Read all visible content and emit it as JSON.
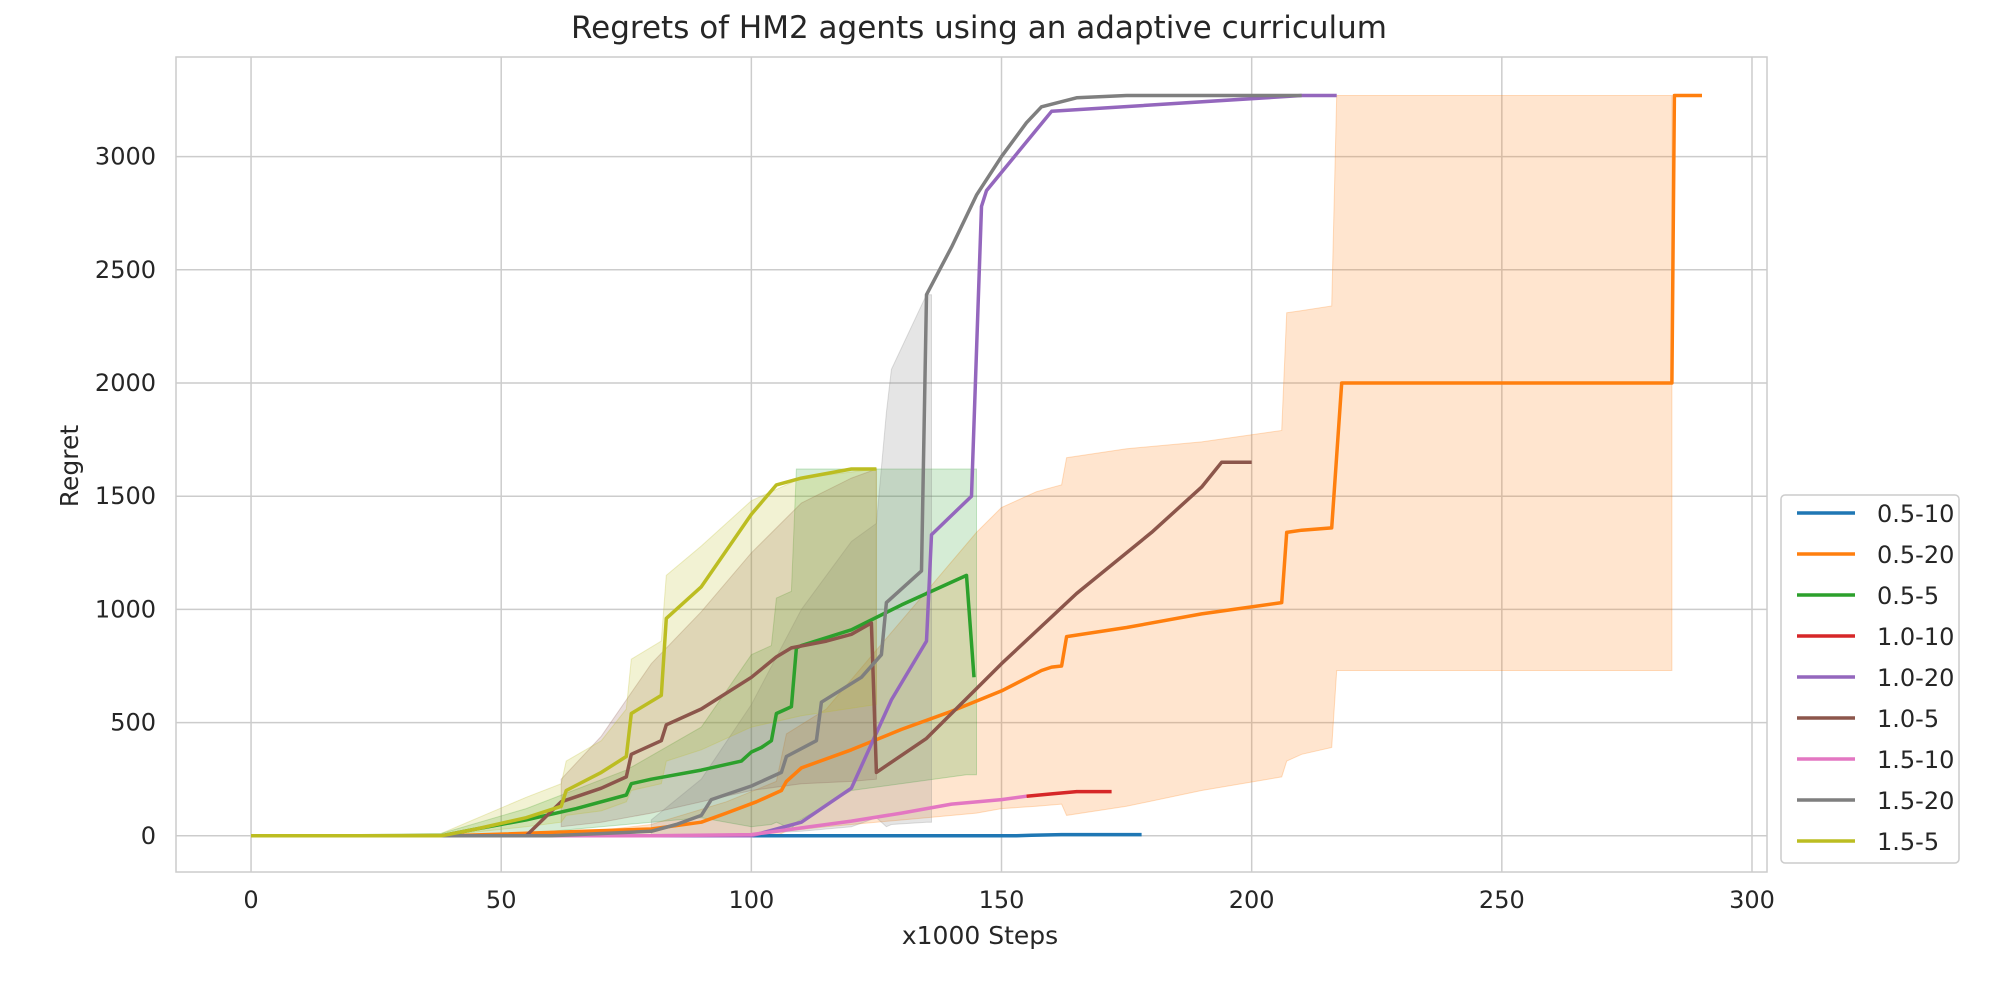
{
  "chart_data": {
    "type": "line",
    "title": "Regrets of HM2 agents using an adaptive curriculum",
    "xlabel": "x1000 Steps",
    "ylabel": "Regret",
    "xlim": [
      -15,
      303
    ],
    "ylim": [
      -160,
      3440
    ],
    "xticks": [
      0,
      50,
      100,
      150,
      200,
      250,
      300
    ],
    "yticks": [
      0,
      500,
      1000,
      1500,
      2000,
      2500,
      3000
    ],
    "grid": true,
    "legend_position": "right",
    "series": [
      {
        "name": "0.5-10",
        "color": "#1f77b4",
        "x": [
          0,
          100,
          153,
          156,
          162,
          178
        ],
        "y": [
          0,
          0,
          0,
          2,
          5,
          5
        ],
        "band_x": [],
        "band_lo": [],
        "band_hi": []
      },
      {
        "name": "0.5-20",
        "color": "#ff7f0e",
        "x": [
          0,
          40,
          80,
          90,
          95,
          101,
          106,
          107,
          110,
          120,
          130,
          140,
          150,
          158,
          160,
          162,
          163,
          175,
          190,
          206,
          207,
          210,
          216,
          218,
          230,
          284,
          284.5,
          290
        ],
        "y": [
          0,
          0,
          30,
          60,
          100,
          150,
          200,
          240,
          300,
          380,
          470,
          550,
          640,
          730,
          745,
          750,
          880,
          920,
          980,
          1030,
          1340,
          1350,
          1360,
          2000,
          2000,
          2000,
          3270,
          3270
        ],
        "band_x": [
          60,
          80,
          95,
          105,
          107,
          115,
          125,
          135,
          145,
          150,
          157,
          162,
          163,
          175,
          190,
          206,
          207,
          210,
          216,
          217,
          218,
          284
        ],
        "band_lo": [
          0,
          0,
          0,
          0,
          20,
          40,
          60,
          80,
          100,
          120,
          130,
          140,
          90,
          130,
          200,
          260,
          330,
          360,
          390,
          730,
          730,
          730
        ],
        "band_hi": [
          0,
          50,
          150,
          240,
          450,
          560,
          820,
          1080,
          1340,
          1450,
          1520,
          1550,
          1670,
          1710,
          1740,
          1790,
          2310,
          2320,
          2340,
          3270,
          3270,
          3270
        ]
      },
      {
        "name": "0.5-5",
        "color": "#2ca02c",
        "x": [
          0,
          38,
          45,
          55,
          65,
          75,
          76,
          80,
          90,
          98,
          100,
          102,
          104,
          105,
          107,
          108,
          109,
          110,
          120,
          130,
          143,
          144.5
        ],
        "y": [
          0,
          0,
          30,
          70,
          120,
          180,
          230,
          250,
          290,
          330,
          370,
          390,
          420,
          540,
          560,
          570,
          830,
          840,
          910,
          1020,
          1150,
          700
        ],
        "band_x": [
          0,
          38,
          55,
          75,
          90,
          100,
          104,
          105,
          108,
          109,
          120,
          143,
          145
        ],
        "band_lo": [
          0,
          0,
          10,
          50,
          80,
          40,
          50,
          60,
          30,
          60,
          200,
          270,
          270
        ],
        "band_hi": [
          0,
          10,
          120,
          290,
          480,
          800,
          840,
          1050,
          1080,
          1620,
          1620,
          1620,
          1620
        ]
      },
      {
        "name": "1.0-10",
        "color": "#d62728",
        "x": [
          155,
          160,
          165,
          172
        ],
        "y": [
          175,
          185,
          195,
          195
        ],
        "band_x": [],
        "band_lo": [],
        "band_hi": []
      },
      {
        "name": "1.0-20",
        "color": "#9467bd",
        "x": [
          60,
          100,
          110,
          120,
          128,
          135,
          136,
          144,
          146,
          147,
          160,
          210,
          217
        ],
        "y": [
          0,
          0,
          60,
          210,
          600,
          860,
          1330,
          1500,
          2780,
          2850,
          3200,
          3270,
          3270
        ],
        "band_x": [],
        "band_lo": [],
        "band_hi": []
      },
      {
        "name": "1.0-5",
        "color": "#8c564b",
        "x": [
          0,
          55,
          62,
          70,
          75,
          76,
          82,
          83,
          90,
          100,
          105,
          108,
          115,
          120,
          124,
          125,
          135,
          150,
          165,
          180,
          190,
          194,
          200
        ],
        "y": [
          0,
          0,
          150,
          210,
          260,
          360,
          420,
          490,
          560,
          700,
          790,
          830,
          860,
          890,
          940,
          280,
          430,
          760,
          1070,
          1340,
          1540,
          1650,
          1650
        ],
        "band_x": [
          62,
          70,
          80,
          90,
          100,
          110,
          120,
          125
        ],
        "band_lo": [
          40,
          60,
          100,
          150,
          200,
          230,
          240,
          250
        ],
        "band_hi": [
          250,
          440,
          760,
          990,
          1250,
          1470,
          1580,
          1620
        ]
      },
      {
        "name": "1.5-10",
        "color": "#e377c2",
        "x": [
          0,
          80,
          100,
          110,
          120,
          130,
          140,
          150,
          155
        ],
        "y": [
          0,
          0,
          5,
          35,
          65,
          100,
          140,
          160,
          175
        ],
        "band_x": [],
        "band_lo": [],
        "band_hi": []
      },
      {
        "name": "1.5-20",
        "color": "#7f7f7f",
        "x": [
          0,
          60,
          80,
          85,
          90,
          92,
          100,
          106,
          107,
          113,
          114,
          122,
          126,
          127,
          134,
          135,
          140,
          145,
          150,
          155,
          158,
          165,
          175,
          210
        ],
        "y": [
          0,
          0,
          20,
          50,
          90,
          160,
          220,
          280,
          350,
          420,
          590,
          700,
          800,
          1030,
          1170,
          2390,
          2600,
          2830,
          3000,
          3150,
          3220,
          3260,
          3270,
          3270
        ],
        "band_x": [
          80,
          90,
          100,
          110,
          120,
          125,
          127,
          128,
          135,
          136
        ],
        "band_lo": [
          0,
          0,
          10,
          20,
          40,
          80,
          40,
          50,
          60,
          60
        ],
        "band_hi": [
          70,
          250,
          580,
          1000,
          1300,
          1380,
          1870,
          2060,
          2390,
          2390
        ]
      },
      {
        "name": "1.5-5",
        "color": "#bcbd22",
        "x": [
          0,
          38,
          45,
          55,
          62,
          63,
          70,
          75,
          76,
          82,
          83,
          90,
          100,
          105,
          110,
          120,
          125
        ],
        "y": [
          0,
          0,
          30,
          80,
          130,
          200,
          280,
          350,
          540,
          620,
          960,
          1100,
          1420,
          1550,
          1580,
          1620,
          1620
        ],
        "band_x": [
          0,
          38,
          55,
          62,
          63,
          70,
          75,
          76,
          82,
          83,
          90,
          100,
          110,
          125
        ],
        "band_lo": [
          0,
          0,
          40,
          60,
          90,
          110,
          150,
          200,
          230,
          330,
          380,
          480,
          530,
          580
        ],
        "band_hi": [
          0,
          10,
          170,
          230,
          330,
          420,
          560,
          780,
          860,
          1150,
          1280,
          1480,
          1580,
          1620
        ]
      }
    ]
  }
}
